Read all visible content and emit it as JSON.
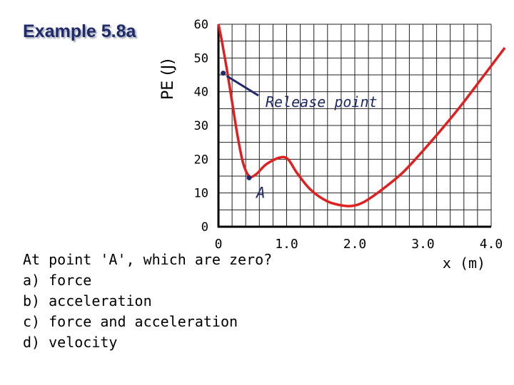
{
  "title": "Example 5.8a",
  "question": {
    "prompt": "At point 'A', which are zero?",
    "options": [
      "a) force",
      "b) acceleration",
      "c) force and acceleration",
      "d) velocity"
    ]
  },
  "chart_data": {
    "type": "line",
    "xlabel": "x (m)",
    "ylabel": "PE (J)",
    "x_ticks": [
      {
        "value": 0,
        "label": "0"
      },
      {
        "value": 1.0,
        "label": "1.0"
      },
      {
        "value": 2.0,
        "label": "2.0"
      },
      {
        "value": 3.0,
        "label": "3.0"
      },
      {
        "value": 4.0,
        "label": "4.0"
      }
    ],
    "y_ticks": [
      0,
      10,
      20,
      30,
      40,
      50,
      60
    ],
    "xlim": [
      0,
      4.0
    ],
    "ylim": [
      0,
      60
    ],
    "grid": true,
    "series": [
      {
        "color": "#e02020",
        "points": [
          [
            0.0,
            60
          ],
          [
            0.05,
            55
          ],
          [
            0.12,
            47
          ],
          [
            0.2,
            37
          ],
          [
            0.28,
            27
          ],
          [
            0.36,
            19
          ],
          [
            0.45,
            15
          ],
          [
            0.55,
            15.5
          ],
          [
            0.7,
            18.5
          ],
          [
            0.9,
            20.5
          ],
          [
            1.02,
            20
          ],
          [
            1.15,
            16
          ],
          [
            1.35,
            11
          ],
          [
            1.6,
            7.5
          ],
          [
            1.85,
            6.2
          ],
          [
            2.0,
            6.3
          ],
          [
            2.15,
            7.5
          ],
          [
            2.4,
            11
          ],
          [
            2.7,
            16
          ],
          [
            3.0,
            22.5
          ],
          [
            3.3,
            29.5
          ],
          [
            3.6,
            37
          ],
          [
            3.9,
            45
          ],
          [
            4.2,
            53
          ]
        ]
      }
    ],
    "points": [
      {
        "x": 0.07,
        "y": 45.5
      },
      {
        "x": 0.45,
        "y": 14.5,
        "label": "A"
      }
    ],
    "annotations": [
      {
        "text": "Release point",
        "x": 0.07,
        "y": 45.5
      }
    ]
  }
}
